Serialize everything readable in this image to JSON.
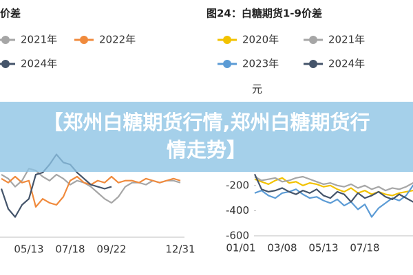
{
  "chart_data": [
    {
      "type": "line",
      "title": "价差",
      "categories": [
        null,
        null,
        null,
        null,
        "05/13",
        null,
        null,
        null,
        null,
        null,
        "07/18",
        null,
        null,
        null,
        null,
        null,
        "09/22",
        null,
        null,
        null,
        null,
        null,
        null,
        null,
        null,
        null,
        "12/31"
      ],
      "ylim": [
        -400,
        400
      ],
      "series": [
        {
          "name": "2021年",
          "color": "#a6a6a6",
          "values": [
            -90,
            -110,
            -150,
            -120,
            -60,
            -70,
            -100,
            -120,
            -90,
            -110,
            -140,
            -120,
            -130,
            -150,
            -180,
            -210,
            -230,
            -200,
            -150,
            -130,
            -130,
            -140,
            -120,
            -130,
            -120,
            -120,
            -130
          ]
        },
        {
          "name": "2022年",
          "color": "#f08a3c",
          "values": [
            -110,
            -130,
            -100,
            -130,
            -120,
            -250,
            -210,
            -230,
            -240,
            -200,
            -120,
            -100,
            -130,
            -140,
            -120,
            -130,
            -100,
            -130,
            -120,
            -120,
            -130,
            -110,
            -120,
            -130,
            -120,
            -110,
            -120
          ]
        },
        {
          "name": "2024年",
          "color": "#44546a",
          "values": [
            -160,
            -260,
            -300,
            -240,
            -210,
            -90,
            -80,
            -40,
            10,
            -30,
            -40,
            -80,
            -110,
            -140,
            -150,
            -160,
            -150,
            null,
            null,
            null,
            null,
            null,
            null,
            null,
            null,
            null,
            null
          ]
        }
      ]
    },
    {
      "type": "line",
      "title": "图24：白糖期货1-9价差",
      "y_label": "元",
      "categories": [
        "01/01",
        null,
        null,
        null,
        null,
        null,
        "03/08",
        null,
        null,
        null,
        null,
        null,
        "05/13",
        null,
        null,
        null,
        null,
        null,
        "07/18",
        null,
        null,
        null,
        null,
        null,
        null,
        null,
        null
      ],
      "ylim": [
        -600,
        400
      ],
      "yticks": [
        -600,
        -400,
        -200
      ],
      "series": [
        {
          "name": "2020年",
          "color": "#f2c200",
          "values": [
            null,
            null,
            -150,
            -170,
            -190,
            -160,
            -140,
            -180,
            -170,
            -200,
            -180,
            -190,
            -210,
            -200,
            -230,
            -250,
            -220,
            -260,
            -240,
            -270,
            -250,
            -270,
            -280,
            -260,
            -250,
            -240,
            -230
          ]
        },
        {
          "name": "2021年",
          "color": "#a6a6a6",
          "values": [
            null,
            null,
            -130,
            -160,
            -150,
            -140,
            -170,
            -160,
            -140,
            -130,
            -150,
            -170,
            -190,
            -180,
            -200,
            -210,
            -190,
            -220,
            -200,
            -230,
            -210,
            -240,
            -220,
            -230,
            -210,
            -180,
            -160
          ]
        },
        {
          "name": "2023年",
          "color": "#5b9bd5",
          "values": [
            null,
            null,
            -260,
            -240,
            -280,
            -300,
            -260,
            -250,
            -230,
            -270,
            -300,
            -290,
            -320,
            -340,
            -310,
            -360,
            -330,
            -390,
            -350,
            -450,
            -380,
            -340,
            -300,
            -320,
            -280,
            -200,
            -150
          ]
        },
        {
          "name": "2024年",
          "color": "#44546a",
          "values": [
            null,
            null,
            -110,
            -230,
            -250,
            -240,
            -220,
            -250,
            -270,
            -240,
            -260,
            -230,
            -280,
            -300,
            -250,
            -270,
            -330,
            -260,
            -300,
            -280,
            -250,
            -290,
            -310,
            -270,
            -300,
            -330,
            -320
          ]
        }
      ]
    }
  ],
  "banner": "【郑州白糖期货行情,郑州白糖期货行情走势】"
}
